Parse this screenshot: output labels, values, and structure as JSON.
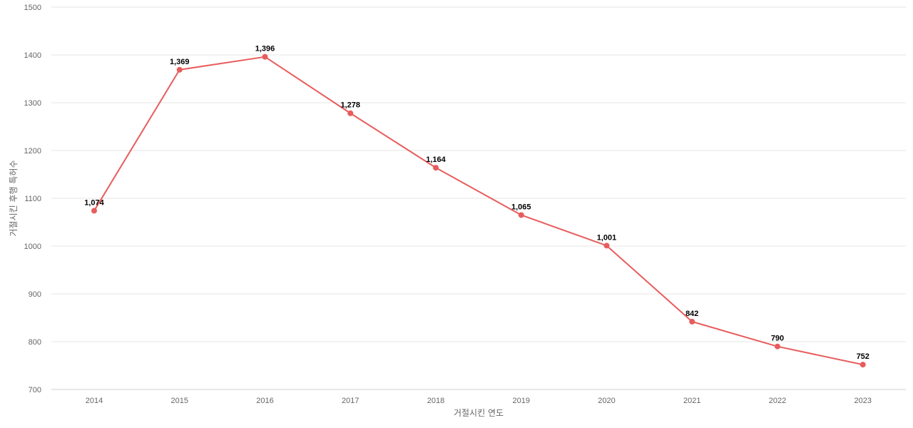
{
  "chart_data": {
    "type": "line",
    "title": "",
    "xlabel": "거절시킨 연도",
    "ylabel": "거절시킨 후행 특허수",
    "ylim": [
      700,
      1500
    ],
    "yticks": [
      700,
      800,
      900,
      1000,
      1100,
      1200,
      1300,
      1400,
      1500
    ],
    "grid": true,
    "categories": [
      "2014",
      "2015",
      "2016",
      "2017",
      "2018",
      "2019",
      "2020",
      "2021",
      "2022",
      "2023"
    ],
    "series": [
      {
        "values": [
          1074,
          1369,
          1396,
          1278,
          1164,
          1065,
          1001,
          842,
          790,
          752
        ],
        "labels": [
          "1,074",
          "1,369",
          "1,396",
          "1,278",
          "1,164",
          "1,065",
          "1,001",
          "842",
          "790",
          "752"
        ],
        "color": "#e85c5c"
      }
    ]
  }
}
